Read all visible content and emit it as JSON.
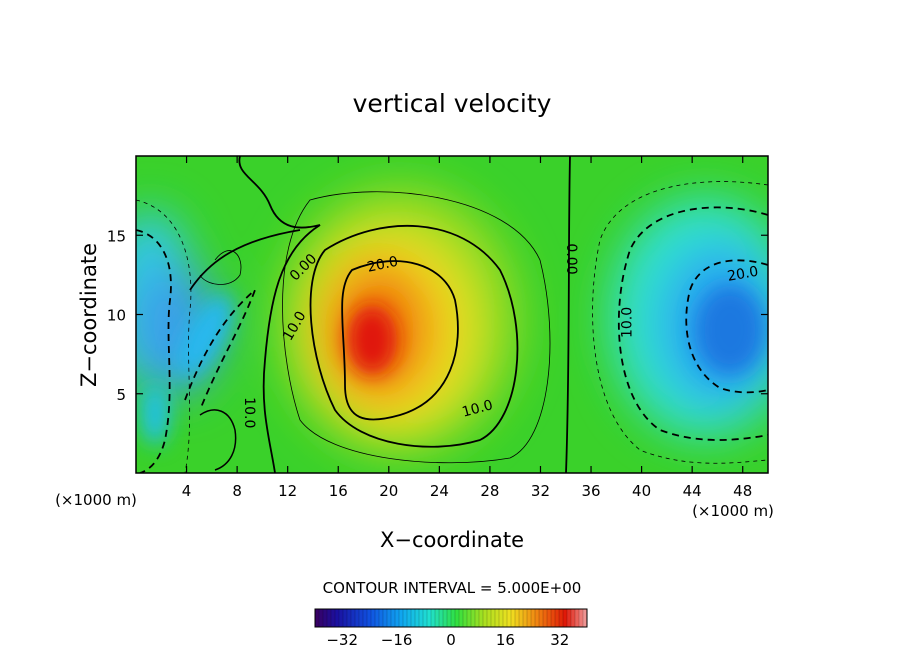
{
  "chart_data": {
    "type": "heatmap",
    "title": "vertical velocity",
    "xlabel": "X−coordinate",
    "ylabel": "Z−coordinate",
    "x_unit_left": "(×1000 m)",
    "x_unit_right": "(×1000 m)",
    "xlim": [
      0,
      50
    ],
    "ylim": [
      0,
      20
    ],
    "x_ticks": [
      4,
      8,
      12,
      16,
      20,
      24,
      28,
      32,
      36,
      40,
      44,
      48
    ],
    "y_ticks": [
      5,
      10,
      15
    ],
    "contour_interval_text": "CONTOUR INTERVAL = 5.000E+00",
    "colorbar": {
      "range": [
        -40,
        40
      ],
      "ticks": [
        -32,
        -16,
        0,
        16,
        32
      ],
      "tick_labels": [
        "−32",
        "−16",
        "0",
        "16",
        "32"
      ]
    },
    "contour_labels": [
      {
        "text": "20.0",
        "x": 19.5,
        "z": 13.2,
        "angle": -12
      },
      {
        "text": "0.00",
        "x": 13.2,
        "z": 13.0,
        "angle": -45
      },
      {
        "text": "10.0",
        "x": 12.5,
        "z": 9.3,
        "angle": -60
      },
      {
        "text": "10.0",
        "x": 27,
        "z": 4.1,
        "angle": -15
      },
      {
        "text": "10.0",
        "x": 9.0,
        "z": 3.8,
        "angle": 90
      },
      {
        "text": "0.00",
        "x": 34.5,
        "z": 13.5,
        "angle": 90
      },
      {
        "text": "10.0",
        "x": 38.8,
        "z": 9.5,
        "angle": -90
      },
      {
        "text": "20.0",
        "x": 48.0,
        "z": 12.6,
        "angle": -10
      }
    ],
    "features": [
      {
        "name": "updraft",
        "x": 18.5,
        "z": 8.5,
        "peak": 36
      },
      {
        "name": "downdraft-right",
        "x": 47.5,
        "z": 9.0,
        "peak": -26
      },
      {
        "name": "downdraft-left",
        "x": 1.5,
        "z": 10.5,
        "peak": -22
      },
      {
        "name": "downdraft-left-low",
        "x": 2.5,
        "z": 3.5,
        "peak": -14
      },
      {
        "name": "downdraft-diagonal",
        "x": 6.0,
        "z": 9.5,
        "peak": -14
      }
    ],
    "grid": false
  }
}
